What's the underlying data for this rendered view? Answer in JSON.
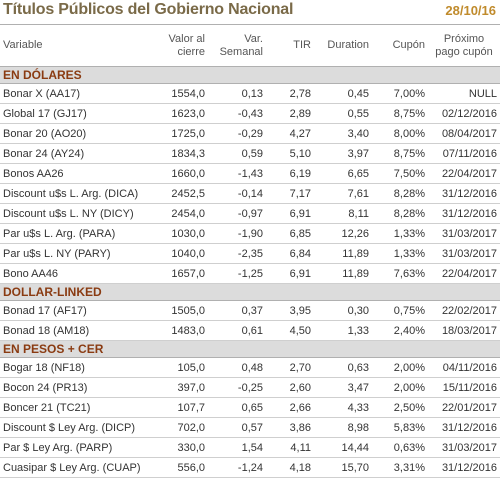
{
  "header": {
    "title": "Títulos Públicos del Gobierno Nacional",
    "date": "28/10/16"
  },
  "columns": {
    "variable": "Variable",
    "precio": [
      "Valor al",
      "cierre"
    ],
    "var": [
      "Var.",
      "Semanal"
    ],
    "tir": "TIR",
    "duration": "Duration",
    "cupon": "Cupón",
    "proximo": [
      "Próximo",
      "pago cupón"
    ]
  },
  "sections": [
    {
      "title": "EN DÓLARES",
      "rows": [
        [
          "Bonar X (AA17)",
          "1554,0",
          "0,13",
          "2,78",
          "0,45",
          "7,00%",
          "NULL"
        ],
        [
          "Global 17 (GJ17)",
          "1623,0",
          "-0,43",
          "2,89",
          "0,55",
          "8,75%",
          "02/12/2016"
        ],
        [
          "Bonar 20 (AO20)",
          "1725,0",
          "-0,29",
          "4,27",
          "3,40",
          "8,00%",
          "08/04/2017"
        ],
        [
          "Bonar 24 (AY24)",
          "1834,3",
          "0,59",
          "5,10",
          "3,97",
          "8,75%",
          "07/11/2016"
        ],
        [
          "Bonos AA26",
          "1660,0",
          "-1,43",
          "6,19",
          "6,65",
          "7,50%",
          "22/04/2017"
        ],
        [
          "Discount u$s L. Arg. (DICA)",
          "2452,5",
          "-0,14",
          "7,17",
          "7,61",
          "8,28%",
          "31/12/2016"
        ],
        [
          "Discount u$s L. NY (DICY)",
          "2454,0",
          "-0,97",
          "6,91",
          "8,11",
          "8,28%",
          "31/12/2016"
        ],
        [
          "Par u$s L. Arg. (PARA)",
          "1030,0",
          "-1,90",
          "6,85",
          "12,26",
          "1,33%",
          "31/03/2017"
        ],
        [
          "Par u$s L. NY (PARY)",
          "1040,0",
          "-2,35",
          "6,84",
          "11,89",
          "1,33%",
          "31/03/2017"
        ],
        [
          "Bono AA46",
          "1657,0",
          "-1,25",
          "6,91",
          "11,89",
          "7,63%",
          "22/04/2017"
        ]
      ]
    },
    {
      "title": "DOLLAR-LINKED",
      "rows": [
        [
          "Bonad 17 (AF17)",
          "1505,0",
          "0,37",
          "3,95",
          "0,30",
          "0,75%",
          "22/02/2017"
        ],
        [
          "Bonad 18 (AM18)",
          "1483,0",
          "0,61",
          "4,50",
          "1,33",
          "2,40%",
          "18/03/2017"
        ]
      ]
    },
    {
      "title": "EN PESOS + CER",
      "rows": [
        [
          "Bogar 18 (NF18)",
          "105,0",
          "0,48",
          "2,70",
          "0,63",
          "2,00%",
          "04/11/2016"
        ],
        [
          "Bocon 24 (PR13)",
          "397,0",
          "-0,25",
          "2,60",
          "3,47",
          "2,00%",
          "15/11/2016"
        ],
        [
          "Boncer 21 (TC21)",
          "107,7",
          "0,65",
          "2,66",
          "4,33",
          "2,50%",
          "22/01/2017"
        ],
        [
          "Discount $ Ley Arg. (DICP)",
          "702,0",
          "0,57",
          "3,86",
          "8,98",
          "5,83%",
          "31/12/2016"
        ],
        [
          "Par $ Ley Arg. (PARP)",
          "330,0",
          "1,54",
          "4,11",
          "14,44",
          "0,63%",
          "31/03/2017"
        ],
        [
          "Cuasipar $ Ley Arg. (CUAP)",
          "556,0",
          "-1,24",
          "4,18",
          "15,70",
          "3,31%",
          "31/12/2016"
        ]
      ]
    }
  ]
}
